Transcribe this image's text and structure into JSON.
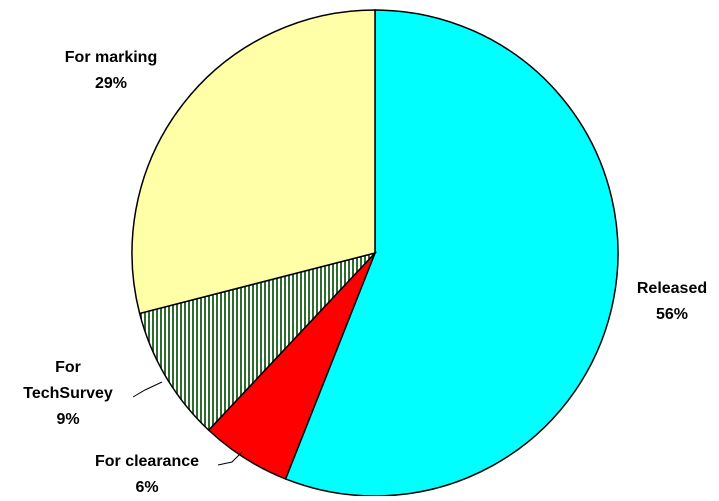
{
  "chart_data": {
    "type": "pie",
    "categories": [
      "Released",
      "For clearance",
      "For TechSurvey",
      "For marking"
    ],
    "values": [
      56,
      6,
      9,
      29
    ],
    "value_labels": [
      "56%",
      "6%",
      "9%",
      "29%"
    ],
    "colors": [
      "#00ffff",
      "#ff0000",
      "pattern-green-stripes",
      "#ffffa8"
    ]
  }
}
